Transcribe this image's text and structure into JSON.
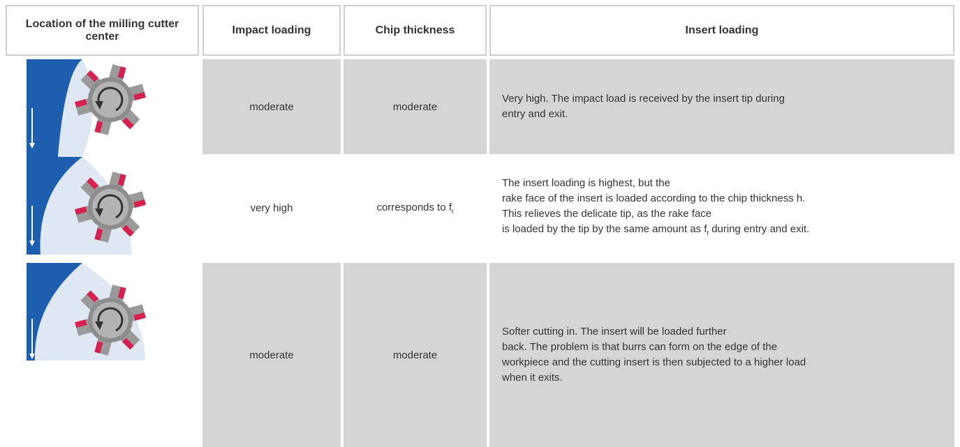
{
  "header": [
    "Location of the milling cutter center",
    "Impact loading",
    "Chip thickness",
    "Insert loading"
  ],
  "rows": [
    {
      "impact": "moderate",
      "chip": {
        "text": "moderate"
      },
      "insert": [
        {
          "text": "Very high. The impact load is received by the insert tip during"
        },
        {
          "text": "entry and exit."
        }
      ]
    },
    {
      "impact": "very high",
      "chip": {
        "text": "corresponds to f",
        "sub": "t"
      },
      "insert": [
        {
          "text": "The insert loading is highest, but the"
        },
        {
          "text": "rake face of the insert is loaded according to the chip thickness h."
        },
        {
          "text": "This relieves the delicate tip, as the rake face"
        },
        {
          "text": "is loaded by the tip by the same amount as f",
          "sub": "t",
          "after": " during entry and exit."
        }
      ]
    },
    {
      "impact": "moderate",
      "chip": {
        "text": "moderate"
      },
      "insert": [
        {
          "text": "Softer cutting in. The insert will be loaded further"
        },
        {
          "text": "back. The problem is that burrs can form on the edge of the"
        },
        {
          "text": "workpiece and the cutting insert is then subjected to a higher load"
        },
        {
          "text": "when it exits."
        }
      ]
    }
  ]
}
